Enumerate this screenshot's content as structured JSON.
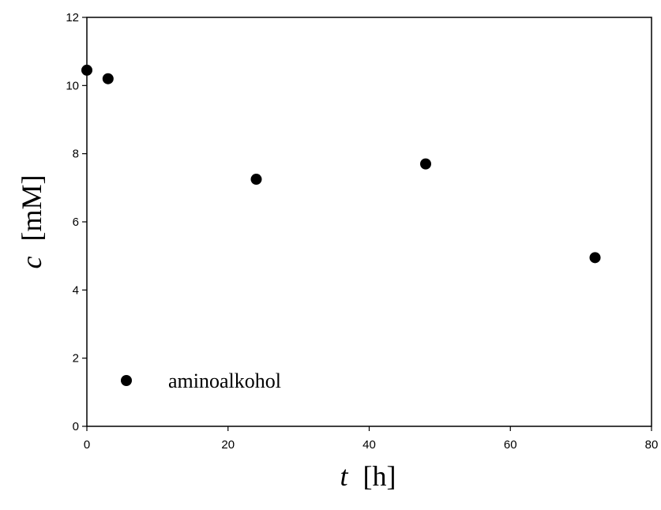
{
  "chart_data": {
    "type": "scatter",
    "x": [
      0,
      3,
      24,
      48,
      72
    ],
    "y": [
      10.45,
      10.2,
      7.25,
      7.7,
      4.95
    ],
    "series": [
      {
        "name": "aminoalkohol",
        "x": [
          0,
          3,
          24,
          48,
          72
        ],
        "y": [
          10.45,
          10.2,
          7.25,
          7.7,
          4.95
        ],
        "color": "#000000",
        "marker": "filled-circle"
      }
    ],
    "xlabel": {
      "var": "t",
      "unit": "[h]"
    },
    "ylabel": {
      "var": "c",
      "unit": "[mM]"
    },
    "xlim": [
      0,
      80
    ],
    "ylim": [
      0,
      12
    ],
    "xticks": [
      "0",
      "20",
      "40",
      "60",
      "80"
    ],
    "yticks": [
      "0",
      "2",
      "4",
      "6",
      "8",
      "10",
      "12"
    ],
    "grid": false,
    "legend_position": "lower-left"
  }
}
